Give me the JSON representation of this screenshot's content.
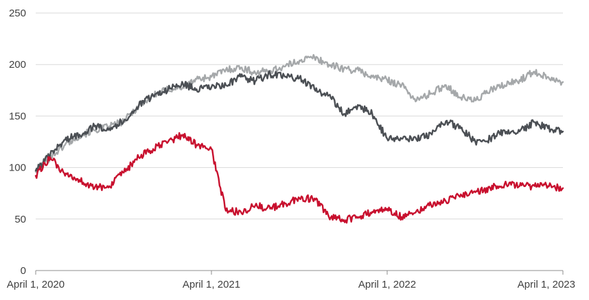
{
  "chart_data": {
    "type": "line",
    "title": "",
    "xlabel": "",
    "ylabel": "",
    "ylim": [
      0,
      250
    ],
    "y_ticks": [
      "0",
      "50",
      "100",
      "150",
      "200",
      "250"
    ],
    "x_ticks": [
      "April 1, 2020",
      "April 1, 2021",
      "April 1, 2022",
      "April 1, 2023"
    ],
    "x": [
      "2020-04-01",
      "2020-05-01",
      "2020-06-01",
      "2020-07-01",
      "2020-08-01",
      "2020-09-01",
      "2020-10-01",
      "2020-11-01",
      "2020-12-01",
      "2021-01-01",
      "2021-02-01",
      "2021-03-01",
      "2021-04-01",
      "2021-05-01",
      "2021-06-01",
      "2021-07-01",
      "2021-08-01",
      "2021-09-01",
      "2021-10-01",
      "2021-11-01",
      "2021-12-01",
      "2022-01-01",
      "2022-02-01",
      "2022-03-01",
      "2022-04-01",
      "2022-05-01",
      "2022-06-01",
      "2022-07-01",
      "2022-08-01",
      "2022-09-01",
      "2022-10-01",
      "2022-11-01",
      "2022-12-01",
      "2023-01-01",
      "2023-02-01",
      "2023-03-01",
      "2023-04-01"
    ],
    "grid": true,
    "legend": "none",
    "series": [
      {
        "color": "#a5a8aa",
        "values": [
          96,
          110,
          122,
          131,
          136,
          140,
          145,
          160,
          170,
          176,
          178,
          186,
          188,
          195,
          197,
          192,
          194,
          198,
          204,
          207,
          200,
          196,
          194,
          188,
          185,
          180,
          165,
          172,
          180,
          168,
          165,
          175,
          180,
          185,
          193,
          188,
          183
        ]
      },
      {
        "color": "#4b4f54",
        "values": [
          97,
          112,
          127,
          132,
          140,
          138,
          145,
          160,
          170,
          176,
          181,
          176,
          178,
          180,
          188,
          184,
          191,
          188,
          187,
          176,
          170,
          152,
          160,
          152,
          128,
          128,
          127,
          133,
          145,
          138,
          125,
          128,
          136,
          135,
          144,
          138,
          135
        ]
      },
      {
        "color": "#c8102e",
        "values": [
          92,
          110,
          92,
          88,
          80,
          82,
          95,
          110,
          118,
          125,
          132,
          122,
          118,
          58,
          57,
          63,
          60,
          65,
          70,
          70,
          52,
          49,
          52,
          57,
          60,
          52,
          58,
          64,
          67,
          74,
          76,
          80,
          84,
          82,
          82,
          82,
          80
        ]
      }
    ]
  }
}
